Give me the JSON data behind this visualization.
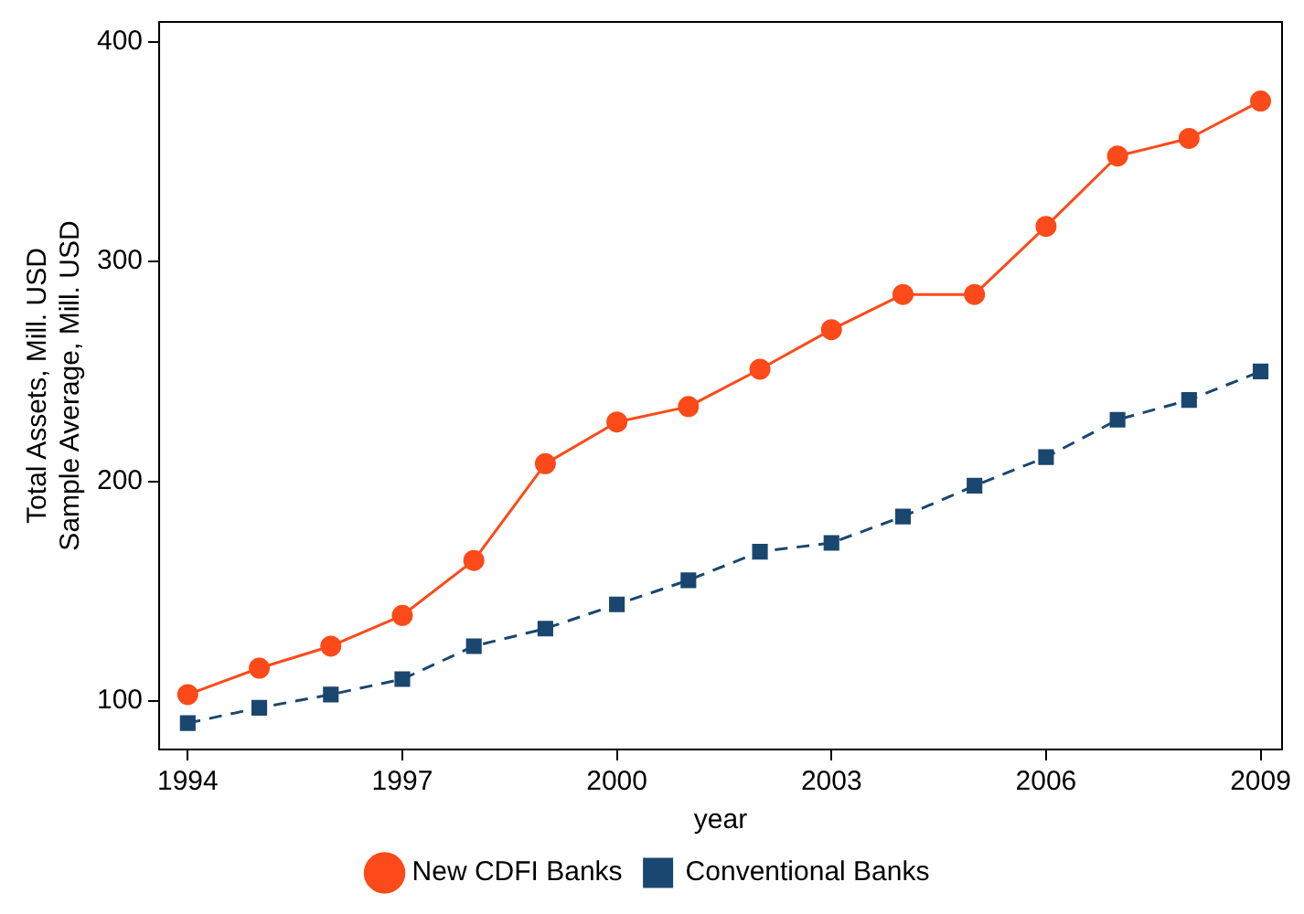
{
  "chart_data": {
    "type": "line",
    "xlabel": "year",
    "ylabel": "Total Assets, Mill. USD\nSample Average, Mill. USD",
    "x": [
      1994,
      1995,
      1996,
      1997,
      1998,
      1999,
      2000,
      2001,
      2002,
      2003,
      2004,
      2005,
      2006,
      2007,
      2008,
      2009
    ],
    "series": [
      {
        "name": "New CDFI Banks",
        "color": "#fc4a1a",
        "marker": "circle",
        "line_style": "solid",
        "values": [
          103,
          115,
          125,
          139,
          164,
          208,
          227,
          234,
          251,
          269,
          285,
          285,
          316,
          348,
          356,
          373
        ]
      },
      {
        "name": "Conventional Banks",
        "color": "#1a476f",
        "marker": "square",
        "line_style": "dashed",
        "values": [
          90,
          97,
          103,
          110,
          125,
          133,
          144,
          155,
          168,
          172,
          184,
          198,
          211,
          228,
          237,
          250
        ]
      }
    ],
    "xlim": [
      1993.6,
      2009.3
    ],
    "xticks": [
      1994,
      1997,
      2000,
      2003,
      2006,
      2009
    ],
    "ylim": [
      78,
      409
    ],
    "yticks": [
      100,
      200,
      300,
      400
    ],
    "grid": false,
    "legend": "bottom"
  }
}
